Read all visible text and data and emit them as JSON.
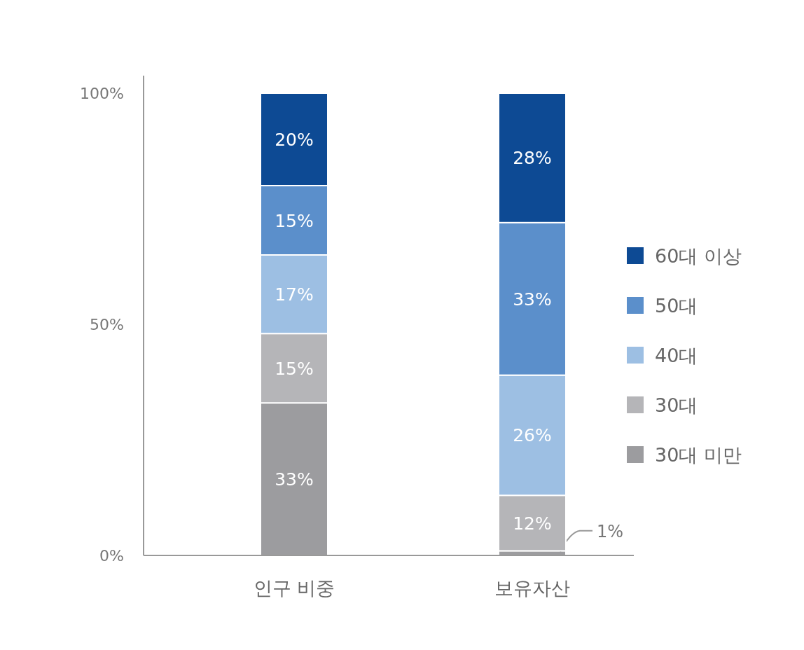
{
  "chart_data": {
    "type": "bar",
    "stacked": true,
    "categories": [
      "인구 비중",
      "보유자산"
    ],
    "series": [
      {
        "name": "30대 미만",
        "color": "#9c9c9f",
        "values": [
          33,
          1
        ],
        "value_labels": [
          "33%",
          "1%"
        ]
      },
      {
        "name": "30대",
        "color": "#b5b5b8",
        "values": [
          15,
          12
        ],
        "value_labels": [
          "15%",
          "12%"
        ]
      },
      {
        "name": "40대",
        "color": "#9dbfe3",
        "values": [
          17,
          26
        ],
        "value_labels": [
          "17%",
          "26%"
        ]
      },
      {
        "name": "50대",
        "color": "#5b8fcb",
        "values": [
          15,
          33
        ],
        "value_labels": [
          "15%",
          "33%"
        ]
      },
      {
        "name": "60대 이상",
        "color": "#0d4a94",
        "values": [
          20,
          28
        ],
        "value_labels": [
          "20%",
          "28%"
        ]
      }
    ],
    "ylim": [
      0,
      100
    ],
    "yticks": [
      {
        "value": 0,
        "label": "0%"
      },
      {
        "value": 50,
        "label": "50%"
      },
      {
        "value": 100,
        "label": "100%"
      }
    ],
    "grid": false,
    "legend": "right"
  }
}
